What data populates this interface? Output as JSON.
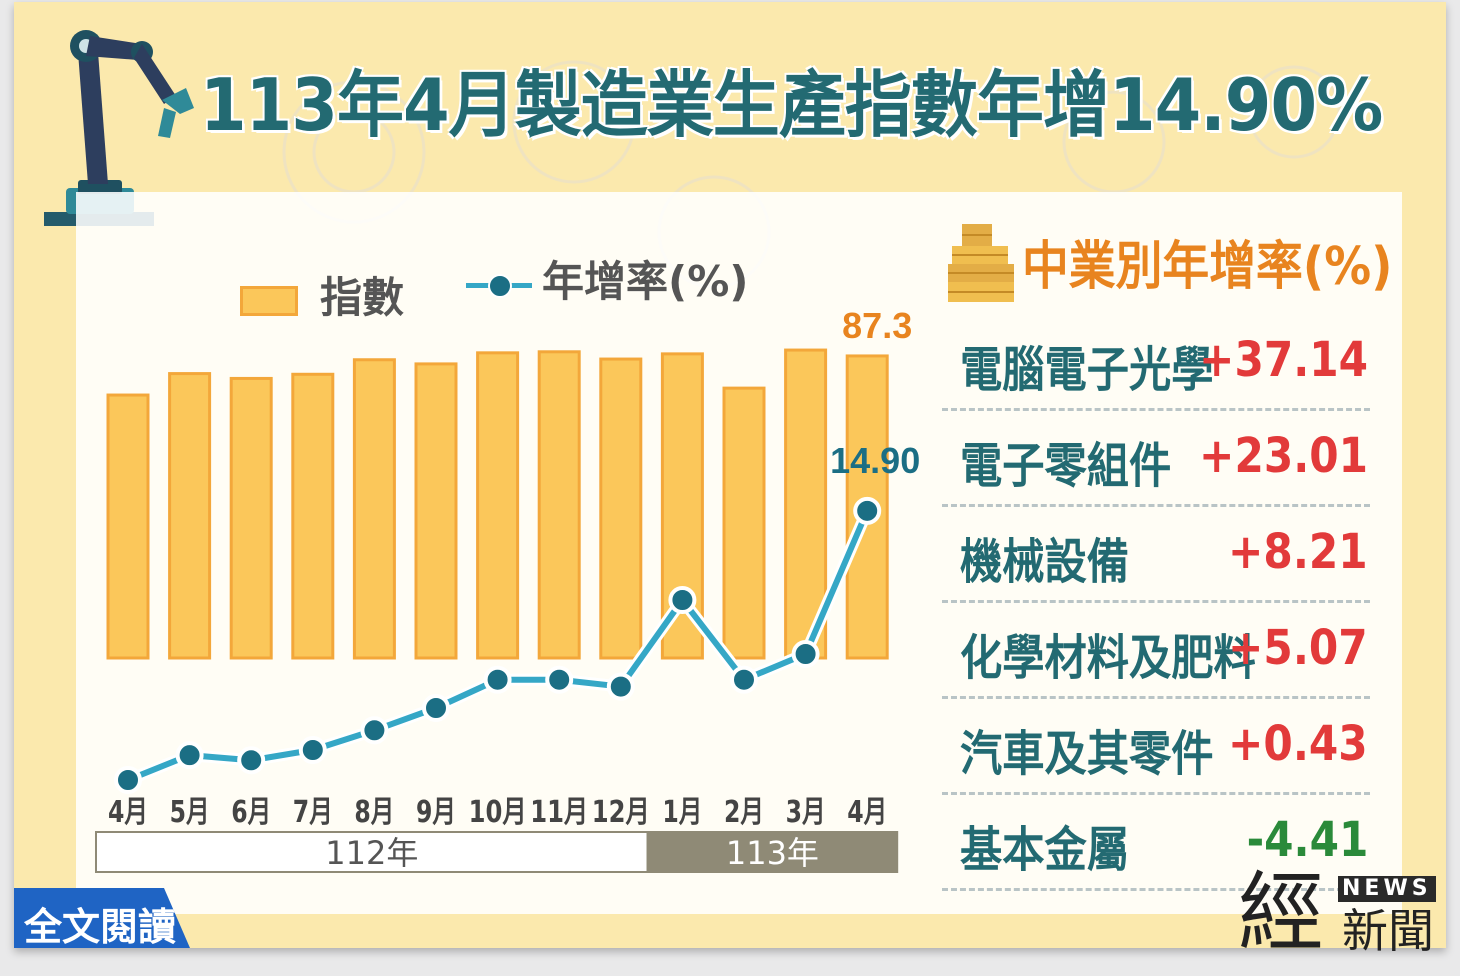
{
  "title": "113年4月製造業生產指數年增14.90%",
  "legend": {
    "bar_label": "指數",
    "line_label": "年增率(%)"
  },
  "chart_data": {
    "type": "bar+line",
    "categories": [
      "4月",
      "5月",
      "6月",
      "7月",
      "8月",
      "9月",
      "10月",
      "11月",
      "12月",
      "1月",
      "2月",
      "3月",
      "4月"
    ],
    "year_groups": [
      {
        "label": "112年",
        "span": 9
      },
      {
        "label": "113年",
        "span": 4
      }
    ],
    "series": [
      {
        "name": "指數",
        "kind": "bar",
        "values": [
          76.0,
          82.2,
          80.8,
          82.0,
          86.2,
          85.0,
          88.2,
          88.5,
          86.4,
          87.9,
          78.0,
          89.0,
          87.3
        ],
        "labeled": {
          "index": 12,
          "text": "87.3"
        }
      },
      {
        "name": "年增率(%)",
        "kind": "line",
        "values": [
          -16.5,
          -13.6,
          -14.2,
          -13.0,
          -10.7,
          -8.1,
          -4.8,
          -4.8,
          -5.6,
          4.5,
          -4.8,
          -1.8,
          14.9
        ],
        "labeled": {
          "index": 12,
          "text": "14.90"
        }
      }
    ],
    "bar_ylim": [
      0,
      100
    ],
    "line_ylim": [
      -20,
      10
    ],
    "colors": {
      "bar": "#fbc75a",
      "bar_border": "#f3a73a",
      "line": "#35a7c6",
      "marker": "#1b6e84",
      "bar_label": "#e8841f",
      "line_label": "#1b6e84"
    }
  },
  "industry_panel": {
    "title": "中業別年增率(%)",
    "rows": [
      {
        "name": "電腦電子光學",
        "value": "+37.14",
        "color": "#e23a3a"
      },
      {
        "name": "電子零組件",
        "value": "+23.01",
        "color": "#e23a3a"
      },
      {
        "name": "機械設備",
        "value": "+8.21",
        "color": "#e23a3a"
      },
      {
        "name": "化學材料及肥料",
        "value": "+5.07",
        "color": "#e23a3a"
      },
      {
        "name": "汽車及其零件",
        "value": "+0.43",
        "color": "#e23a3a"
      },
      {
        "name": "基本金屬",
        "value": "-4.41",
        "color": "#2a8a3a"
      }
    ]
  },
  "read_more": "全文閱讀",
  "logo": {
    "big": "經",
    "badge": "NEWS",
    "small": "新聞"
  }
}
